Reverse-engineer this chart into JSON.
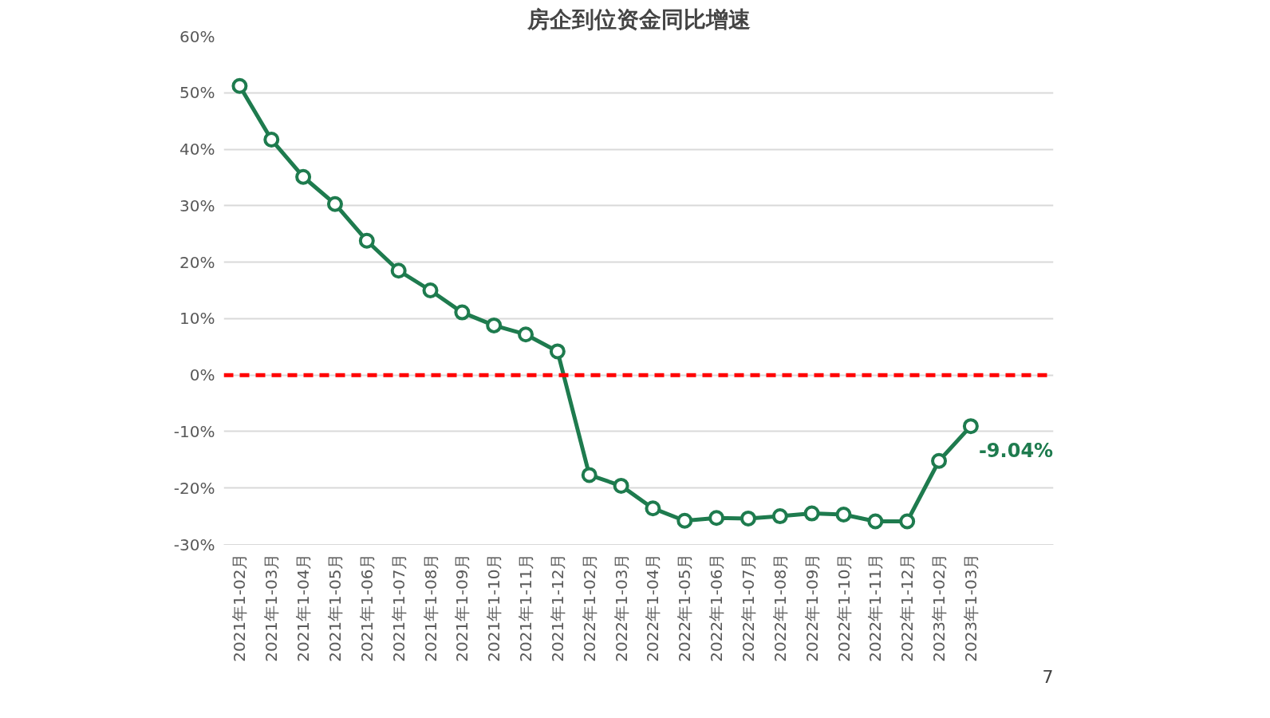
{
  "chart_data": {
    "type": "line",
    "title": "房企到位资金同比增速",
    "categories": [
      "2021年1-02月",
      "2021年1-03月",
      "2021年1-04月",
      "2021年1-05月",
      "2021年1-06月",
      "2021年1-07月",
      "2021年1-08月",
      "2021年1-09月",
      "2021年1-10月",
      "2021年1-11月",
      "2021年1-12月",
      "2022年1-02月",
      "2022年1-03月",
      "2022年1-04月",
      "2022年1-05月",
      "2022年1-06月",
      "2022年1-07月",
      "2022年1-08月",
      "2022年1-09月",
      "2022年1-10月",
      "2022年1-11月",
      "2022年1-12月",
      "2023年1-02月",
      "2023年1-03月"
    ],
    "series": [
      {
        "color": "#1e7b4e",
        "values": [
          51.2,
          41.7,
          35.1,
          30.3,
          23.8,
          18.5,
          15.0,
          11.1,
          8.8,
          7.2,
          4.2,
          -17.7,
          -19.6,
          -23.6,
          -25.8,
          -25.3,
          -25.4,
          -25.0,
          -24.5,
          -24.7,
          -25.9,
          -25.9,
          -15.2,
          -9.04
        ],
        "value_labels": [
          null,
          null,
          null,
          null,
          null,
          null,
          null,
          null,
          null,
          null,
          null,
          null,
          null,
          null,
          null,
          null,
          null,
          null,
          null,
          null,
          null,
          null,
          null,
          "-9.04%"
        ]
      }
    ],
    "ylim": [
      -30,
      60
    ],
    "yticks": [
      {
        "value": -30,
        "label": "-30%"
      },
      {
        "value": -20,
        "label": "-20%"
      },
      {
        "value": -10,
        "label": "-10%"
      },
      {
        "value": 0,
        "label": "0%"
      },
      {
        "value": 10,
        "label": "10%"
      },
      {
        "value": 20,
        "label": "20%"
      },
      {
        "value": 30,
        "label": "30%"
      },
      {
        "value": 40,
        "label": "40%"
      },
      {
        "value": 50,
        "label": "50%"
      },
      {
        "value": 60,
        "label": "60%"
      }
    ],
    "ref_lines": [
      {
        "axis": "y",
        "value": 0,
        "color": "#ff0000",
        "line_style": "dashed"
      }
    ],
    "grid": "y",
    "marker": "circle",
    "line_style": "solid",
    "annotations": [
      "7"
    ]
  }
}
